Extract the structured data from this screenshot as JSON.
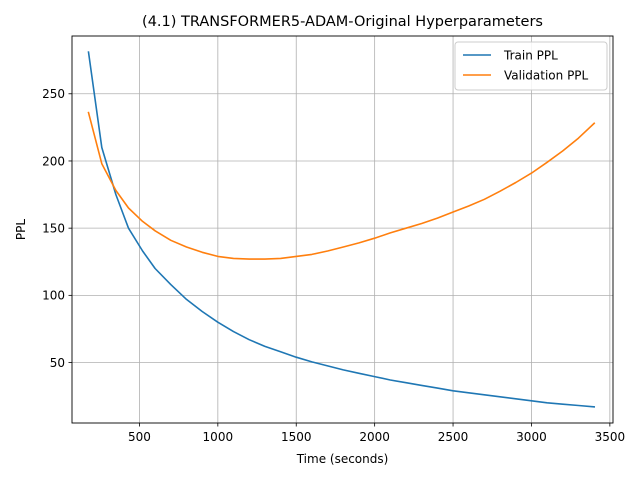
{
  "chart_data": {
    "type": "line",
    "title": "(4.1) TRANSFORMER5-ADAM-Original Hyperparameters",
    "xlabel": "Time (seconds)",
    "ylabel": "PPL",
    "xlim": [
      70,
      3520
    ],
    "ylim": [
      5,
      293
    ],
    "xticks": [
      500,
      1000,
      1500,
      2000,
      2500,
      3000,
      3500
    ],
    "yticks": [
      50,
      100,
      150,
      200,
      250
    ],
    "grid": true,
    "legend": "top-right",
    "series": [
      {
        "name": "Train PPL",
        "color": "#1f77b4",
        "points": [
          [
            175,
            281
          ],
          [
            260,
            210
          ],
          [
            350,
            175
          ],
          [
            430,
            150
          ],
          [
            520,
            133
          ],
          [
            600,
            120
          ],
          [
            700,
            108
          ],
          [
            800,
            97
          ],
          [
            900,
            88
          ],
          [
            1000,
            80
          ],
          [
            1100,
            73
          ],
          [
            1200,
            67
          ],
          [
            1300,
            62
          ],
          [
            1400,
            58
          ],
          [
            1500,
            54
          ],
          [
            1600,
            50.5
          ],
          [
            1700,
            47.5
          ],
          [
            1800,
            44.5
          ],
          [
            1900,
            42
          ],
          [
            2000,
            39.5
          ],
          [
            2100,
            37
          ],
          [
            2200,
            35
          ],
          [
            2300,
            33
          ],
          [
            2400,
            31
          ],
          [
            2500,
            29
          ],
          [
            2600,
            27.5
          ],
          [
            2700,
            26
          ],
          [
            2800,
            24.5
          ],
          [
            2900,
            23
          ],
          [
            3000,
            21.5
          ],
          [
            3100,
            20
          ],
          [
            3200,
            19
          ],
          [
            3300,
            18
          ],
          [
            3400,
            17
          ]
        ]
      },
      {
        "name": "Validation PPL",
        "color": "#ff7f0e",
        "points": [
          [
            175,
            236
          ],
          [
            260,
            198
          ],
          [
            350,
            178
          ],
          [
            430,
            165
          ],
          [
            520,
            155
          ],
          [
            600,
            148
          ],
          [
            700,
            141
          ],
          [
            800,
            136
          ],
          [
            900,
            132
          ],
          [
            1000,
            129
          ],
          [
            1100,
            127.5
          ],
          [
            1200,
            127
          ],
          [
            1300,
            127
          ],
          [
            1400,
            127.5
          ],
          [
            1500,
            129
          ],
          [
            1600,
            130.5
          ],
          [
            1700,
            133
          ],
          [
            1800,
            136
          ],
          [
            1900,
            139
          ],
          [
            2000,
            142.5
          ],
          [
            2100,
            146.5
          ],
          [
            2200,
            150
          ],
          [
            2300,
            153.5
          ],
          [
            2400,
            157.5
          ],
          [
            2500,
            162
          ],
          [
            2600,
            166.5
          ],
          [
            2700,
            171.5
          ],
          [
            2800,
            177.5
          ],
          [
            2900,
            184
          ],
          [
            3000,
            191
          ],
          [
            3100,
            199
          ],
          [
            3200,
            207.5
          ],
          [
            3300,
            217
          ],
          [
            3400,
            228
          ]
        ]
      }
    ]
  }
}
